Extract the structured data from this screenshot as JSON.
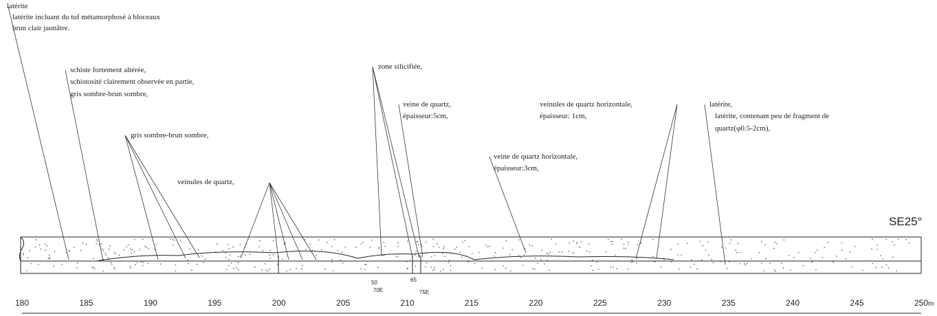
{
  "annotations": [
    {
      "lines": [
        "latérite",
        "latérite incluant du tuf métamorphosé à bloceaux",
        "brun clair jaunâtre."
      ]
    },
    {
      "lines": [
        "schiste fortement altérée,",
        "schistosité clairement observée en partie,",
        "gris sombre-brun sombre,"
      ]
    },
    {
      "lines": [
        "gris sombre-brun sombre,"
      ]
    },
    {
      "lines": [
        "veinules de quartz,"
      ]
    },
    {
      "lines": [
        "zone silicifiée,"
      ]
    },
    {
      "lines": [
        "veine de quartz,",
        "épaisseur:5cm,"
      ]
    },
    {
      "lines": [
        "veinules de quartz horizontale,",
        "épaisseur: 1cm,"
      ]
    },
    {
      "lines": [
        "veine de quartz horizontale,",
        "épaisseur:3cm,"
      ]
    },
    {
      "lines": [
        "latérite,",
        "latérite, contenant peu de fragment de",
        "quartz(φ0.5-2cm),"
      ]
    }
  ],
  "orientation": "SE25°",
  "dips": [
    "50",
    "70E",
    "65",
    "75E"
  ],
  "axis": {
    "ticks": [
      180,
      185,
      190,
      195,
      200,
      205,
      210,
      215,
      220,
      225,
      230,
      235,
      240,
      245,
      250
    ],
    "unit": "m"
  }
}
